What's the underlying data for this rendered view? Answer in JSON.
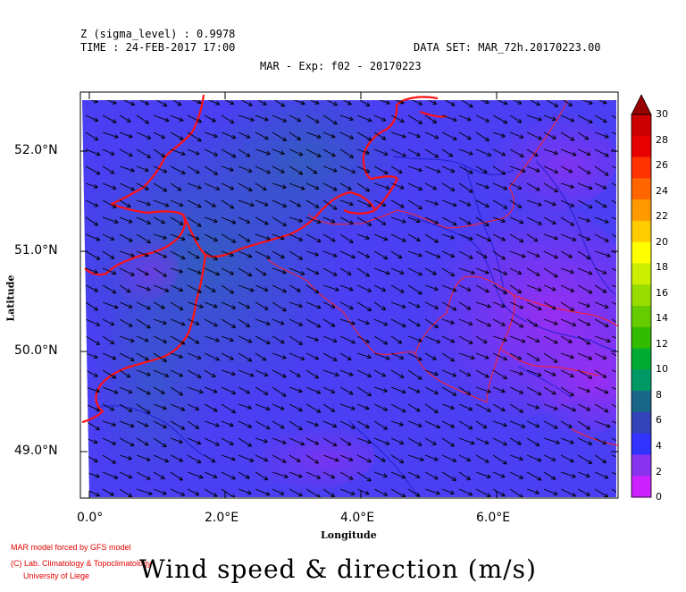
{
  "header": {
    "line1": "Z (sigma_level) : 0.9978",
    "line2": "TIME : 24-FEB-2017 17:00",
    "dataset": "DATA SET: MAR_72h.20170223.00",
    "title": "MAR - Exp: f02 - 20170223"
  },
  "axes": {
    "ylabel": "Latitude",
    "xlabel": "Longitude",
    "lat_ticks": [
      "52.0°N",
      "51.0°N",
      "50.0°N",
      "49.0°N"
    ],
    "lon_ticks": [
      "0.0°",
      "2.0°E",
      "4.0°E",
      "6.0°E"
    ]
  },
  "colorbar": {
    "labels": [
      "30",
      "28",
      "26",
      "24",
      "22",
      "20",
      "18",
      "16",
      "14",
      "12",
      "10",
      "8",
      "6",
      "4",
      "2",
      "0"
    ],
    "colors": [
      "#cc0000",
      "#e60000",
      "#ff3300",
      "#ff6600",
      "#ff9900",
      "#ffcc00",
      "#ffff00",
      "#ccee00",
      "#99dd00",
      "#66cc00",
      "#33bb00",
      "#00aa33",
      "#009966",
      "#1a6688",
      "#3344bb",
      "#3333ff",
      "#8833ee",
      "#cc22ff"
    ],
    "cap_color": "#990000"
  },
  "credits": {
    "line1": "MAR model forced by GFS model",
    "line2": "(C) Lab. Climatology & Topoclimatology",
    "line3": "University of Liege"
  },
  "caption": "Wind speed & direction (m/s)",
  "map_colors": {
    "field_main": "#4a3ff2",
    "field_dark": "#3a55c8",
    "field_light": "#7a3ce8",
    "field_purple": "#9b2ef0",
    "coast": "#ff1111",
    "border": "#ff2020",
    "river": "#2222cc",
    "arrow": "#000000"
  }
}
